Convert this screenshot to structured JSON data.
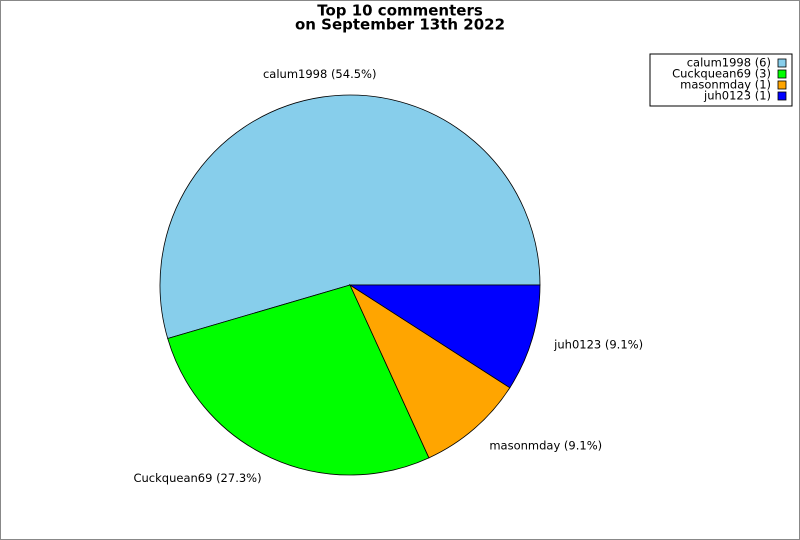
{
  "chart_data": {
    "type": "pie",
    "title": [
      "Top 10 commenters",
      "on September 13th 2022"
    ],
    "categories": [
      "calum1998",
      "Cuckquean69",
      "masonmday",
      "juh0123"
    ],
    "values": [
      6,
      3,
      1,
      1
    ],
    "colors": [
      "#87ceeb",
      "#00ff00",
      "#ffa500",
      "#0000ff"
    ],
    "slice_labels": [
      "calum1998 (54.5%)",
      "Cuckquean69 (27.3%)",
      "masonmday (9.1%)",
      "juh0123 (9.1%)"
    ],
    "legend_labels": [
      "calum1998 (6)",
      "Cuckquean69 (3)",
      "masonmday (1)",
      "juh0123 (1)"
    ],
    "legend": "top-right"
  }
}
